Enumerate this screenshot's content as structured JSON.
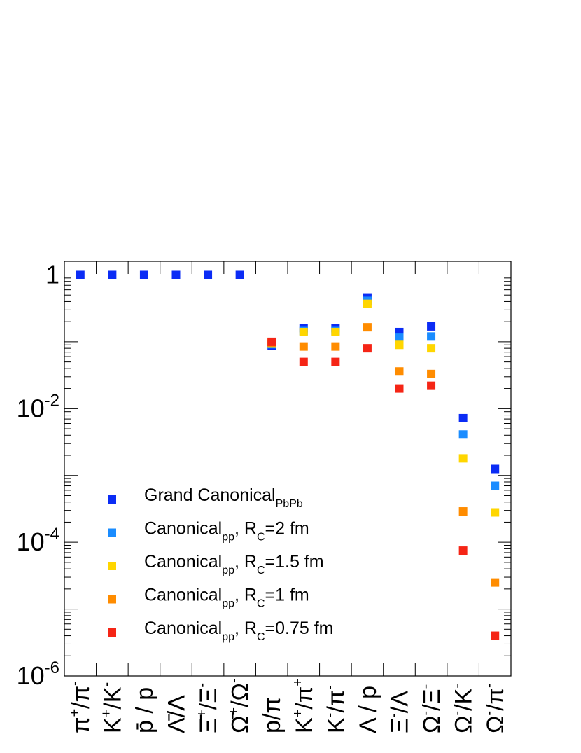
{
  "chart_data": {
    "type": "scatter",
    "yscale": "log",
    "ylim": [
      1e-06,
      1.6
    ],
    "y_tick_labels": [
      {
        "value": 1,
        "base": "1",
        "exp": ""
      },
      {
        "value": 0.01,
        "base": "10",
        "exp": "-2"
      },
      {
        "value": 0.0001,
        "base": "10",
        "exp": "-4"
      },
      {
        "value": 1e-06,
        "base": "10",
        "exp": "-6"
      }
    ],
    "categories": [
      {
        "base": "π",
        "sup": "+",
        "tail": "/π",
        "sup2": "-"
      },
      {
        "base": "K",
        "sup": "+",
        "tail": "/K",
        "sup2": "-"
      },
      {
        "base": "p̄",
        "sup": "",
        "tail": " / p",
        "sup2": ""
      },
      {
        "base": "Λ̄",
        "sup": "",
        "tail": "/Λ",
        "sup2": ""
      },
      {
        "base": "Ξ̄",
        "sup": "+",
        "tail": "/Ξ",
        "sup2": "-"
      },
      {
        "base": "Ω̄",
        "sup": "+",
        "tail": "/Ω",
        "sup2": "-"
      },
      {
        "base": "p",
        "sup": "",
        "tail": "/π",
        "sup2": ""
      },
      {
        "base": "K",
        "sup": "+",
        "tail": "/π",
        "sup2": "+"
      },
      {
        "base": "K",
        "sup": "-",
        "tail": "/π",
        "sup2": "-"
      },
      {
        "base": "Λ",
        "sup": "",
        "tail": " / p",
        "sup2": ""
      },
      {
        "base": "Ξ",
        "sup": "-",
        "tail": "/Λ",
        "sup2": ""
      },
      {
        "base": "Ω",
        "sup": "-",
        "tail": "/Ξ",
        "sup2": "-"
      },
      {
        "base": "Ω",
        "sup": "-",
        "tail": "/K",
        "sup2": "-"
      },
      {
        "base": "Ω",
        "sup": "-",
        "tail": "/π",
        "sup2": "-"
      }
    ],
    "series": [
      {
        "name": "Grand Canonical",
        "sub": "PbPb",
        "suffix": "",
        "sub2": "",
        "suffix2": "",
        "color": "#0b2cf5",
        "values": [
          1.0,
          1.0,
          1.0,
          1.0,
          1.0,
          1.0,
          0.088,
          0.16,
          0.16,
          0.45,
          0.14,
          0.17,
          0.0072,
          0.00125
        ]
      },
      {
        "name": "Canonical",
        "sub": "pp",
        "suffix": ", R",
        "sub2": "C",
        "suffix2": "=2 fm",
        "color": "#1a8cff",
        "values": [
          null,
          null,
          null,
          null,
          null,
          null,
          0.092,
          0.145,
          0.145,
          0.41,
          0.115,
          0.12,
          0.0041,
          0.0007
        ]
      },
      {
        "name": "Canonical",
        "sub": "pp",
        "suffix": ", R",
        "sub2": "C",
        "suffix2": "=1.5 fm",
        "color": "#ffd600",
        "values": [
          null,
          null,
          null,
          null,
          null,
          null,
          0.094,
          0.14,
          0.14,
          0.37,
          0.09,
          0.08,
          0.0018,
          0.00028
        ]
      },
      {
        "name": "Canonical",
        "sub": "pp",
        "suffix": ", R",
        "sub2": "C",
        "suffix2": "=1 fm",
        "color": "#ff8c00",
        "values": [
          null,
          null,
          null,
          null,
          null,
          null,
          0.097,
          0.085,
          0.085,
          0.165,
          0.036,
          0.033,
          0.00029,
          2.5e-05
        ]
      },
      {
        "name": "Canonical",
        "sub": "pp",
        "suffix": ", R",
        "sub2": "C",
        "suffix2": "=0.75 fm",
        "color": "#f52516",
        "values": [
          null,
          null,
          null,
          null,
          null,
          null,
          0.1,
          0.05,
          0.05,
          0.08,
          0.02,
          0.022,
          7.5e-05,
          4e-06
        ]
      }
    ],
    "legend_position": "bottom-left"
  }
}
